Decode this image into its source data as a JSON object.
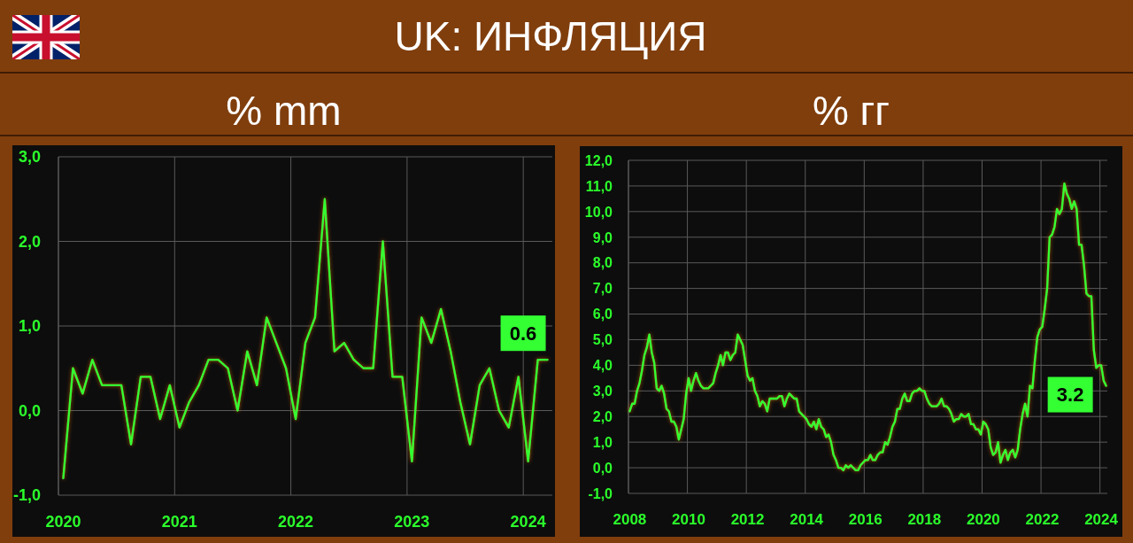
{
  "chart_data": [
    {
      "type": "line",
      "title": "UK: ИНФЛЯЦИЯ",
      "subtitle": "% mm",
      "categories": [
        "2020",
        null,
        null,
        null,
        null,
        null,
        null,
        null,
        null,
        null,
        null,
        null,
        "2021",
        null,
        null,
        null,
        null,
        null,
        null,
        null,
        null,
        null,
        null,
        null,
        "2022",
        null,
        null,
        null,
        null,
        null,
        null,
        null,
        null,
        null,
        null,
        null,
        "2023",
        null,
        null,
        null,
        null,
        null,
        null,
        null,
        null,
        null,
        null,
        null,
        "2024",
        null,
        null
      ],
      "series": [
        {
          "color": "#33ff33",
          "values": [
            -0.8,
            0.5,
            0.2,
            0.6,
            0.3,
            0.3,
            0.3,
            -0.4,
            0.4,
            0.4,
            -0.1,
            0.3,
            -0.2,
            0.1,
            0.3,
            0.6,
            0.6,
            0.5,
            0.0,
            0.7,
            0.3,
            1.1,
            0.8,
            0.5,
            -0.1,
            0.8,
            1.1,
            2.5,
            0.7,
            0.8,
            0.6,
            0.5,
            0.5,
            2.0,
            0.4,
            0.4,
            -0.6,
            1.1,
            0.8,
            1.2,
            0.7,
            0.1,
            -0.4,
            0.3,
            0.5,
            0.0,
            -0.2,
            0.4,
            -0.6,
            0.6,
            0.6
          ],
          "value_labels": [
            null,
            null,
            null,
            null,
            null,
            null,
            null,
            null,
            null,
            null,
            null,
            null,
            null,
            null,
            null,
            null,
            null,
            null,
            null,
            null,
            null,
            null,
            null,
            null,
            null,
            null,
            null,
            null,
            null,
            null,
            null,
            null,
            null,
            null,
            null,
            null,
            null,
            null,
            null,
            null,
            null,
            null,
            null,
            null,
            null,
            null,
            null,
            null,
            null,
            null,
            "0.6"
          ]
        }
      ],
      "ylim": [
        -1,
        3
      ],
      "yticks": [
        {
          "value": -1,
          "label": "-1,0"
        },
        {
          "value": 0,
          "label": "0,0"
        },
        {
          "value": 1,
          "label": "1,0"
        },
        {
          "value": 2,
          "label": "2,0"
        },
        {
          "value": 3,
          "label": "3,0"
        }
      ],
      "grid": true
    },
    {
      "type": "line",
      "subtitle": "% гг",
      "categories": [
        "2008",
        null,
        null,
        null,
        null,
        null,
        null,
        null,
        null,
        null,
        null,
        null,
        null,
        null,
        null,
        null,
        null,
        null,
        null,
        null,
        null,
        null,
        null,
        null,
        "2010",
        null,
        null,
        null,
        null,
        null,
        null,
        null,
        null,
        null,
        null,
        null,
        null,
        null,
        null,
        null,
        null,
        null,
        null,
        null,
        null,
        null,
        null,
        null,
        "2012",
        null,
        null,
        null,
        null,
        null,
        null,
        null,
        null,
        null,
        null,
        null,
        null,
        null,
        null,
        null,
        null,
        null,
        null,
        null,
        null,
        null,
        null,
        null,
        "2014",
        null,
        null,
        null,
        null,
        null,
        null,
        null,
        null,
        null,
        null,
        null,
        null,
        null,
        null,
        null,
        null,
        null,
        null,
        null,
        null,
        null,
        null,
        null,
        "2016",
        null,
        null,
        null,
        null,
        null,
        null,
        null,
        null,
        null,
        null,
        null,
        null,
        null,
        null,
        null,
        null,
        null,
        null,
        null,
        null,
        null,
        null,
        null,
        "2018",
        null,
        null,
        null,
        null,
        null,
        null,
        null,
        null,
        null,
        null,
        null,
        null,
        null,
        null,
        null,
        null,
        null,
        null,
        null,
        null,
        null,
        null,
        null,
        "2020",
        null,
        null,
        null,
        null,
        null,
        null,
        null,
        null,
        null,
        null,
        null,
        null,
        null,
        null,
        null,
        null,
        null,
        null,
        null,
        null,
        null,
        null,
        null,
        "2022",
        null,
        null,
        null,
        null,
        null,
        null,
        null,
        null,
        null,
        null,
        null,
        null,
        null,
        null,
        null,
        null,
        null,
        null,
        null,
        null,
        null,
        null,
        null,
        "2024",
        null,
        null
      ],
      "series": [
        {
          "color": "#33ff33",
          "values": [
            2.2,
            2.5,
            2.5,
            3.0,
            3.3,
            3.8,
            4.4,
            4.7,
            5.2,
            4.5,
            4.1,
            3.1,
            3.0,
            3.2,
            2.9,
            2.3,
            2.2,
            1.8,
            1.8,
            1.6,
            1.1,
            1.5,
            1.9,
            2.9,
            3.5,
            3.0,
            3.4,
            3.7,
            3.4,
            3.2,
            3.1,
            3.1,
            3.1,
            3.2,
            3.3,
            3.7,
            4.0,
            4.4,
            4.0,
            4.5,
            4.5,
            4.2,
            4.4,
            4.5,
            5.2,
            5.0,
            4.8,
            4.2,
            3.6,
            3.4,
            3.5,
            3.0,
            2.8,
            2.4,
            2.6,
            2.5,
            2.2,
            2.7,
            2.7,
            2.7,
            2.7,
            2.8,
            2.8,
            2.4,
            2.7,
            2.9,
            2.8,
            2.7,
            2.7,
            2.2,
            2.1,
            2.0,
            1.9,
            1.7,
            1.6,
            1.8,
            1.5,
            1.9,
            1.6,
            1.5,
            1.2,
            1.3,
            1.0,
            0.5,
            0.3,
            0.0,
            0.0,
            -0.1,
            0.1,
            0.0,
            0.1,
            0.0,
            -0.1,
            -0.1,
            0.1,
            0.2,
            0.3,
            0.3,
            0.5,
            0.3,
            0.3,
            0.5,
            0.6,
            0.6,
            1.0,
            0.9,
            1.2,
            1.6,
            1.8,
            2.3,
            2.3,
            2.7,
            2.9,
            2.6,
            2.6,
            2.9,
            3.0,
            3.0,
            3.1,
            3.0,
            3.0,
            2.7,
            2.5,
            2.4,
            2.4,
            2.4,
            2.5,
            2.7,
            2.4,
            2.4,
            2.3,
            2.1,
            1.8,
            1.9,
            1.9,
            2.1,
            2.0,
            2.0,
            2.1,
            1.7,
            1.7,
            1.5,
            1.5,
            1.3,
            1.8,
            1.7,
            1.5,
            0.8,
            0.5,
            0.6,
            1.0,
            0.2,
            0.5,
            0.7,
            0.3,
            0.6,
            0.7,
            0.4,
            0.7,
            1.5,
            2.1,
            2.5,
            2.0,
            3.2,
            3.1,
            4.2,
            5.1,
            5.4,
            5.5,
            6.2,
            7.0,
            9.0,
            9.1,
            9.4,
            10.1,
            9.9,
            10.1,
            11.1,
            10.7,
            10.5,
            10.1,
            10.4,
            10.1,
            8.7,
            8.7,
            7.9,
            6.8,
            6.7,
            6.7,
            4.6,
            3.9,
            4.0,
            4.0,
            3.4,
            3.2
          ],
          "value_labels": [
            null,
            null,
            null,
            null,
            null,
            null,
            null,
            null,
            null,
            null,
            null,
            null,
            null,
            null,
            null,
            null,
            null,
            null,
            null,
            null,
            null,
            null,
            null,
            null,
            null,
            null,
            null,
            null,
            null,
            null,
            null,
            null,
            null,
            null,
            null,
            null,
            null,
            null,
            null,
            null,
            null,
            null,
            null,
            null,
            null,
            null,
            null,
            null,
            null,
            null,
            null,
            null,
            null,
            null,
            null,
            null,
            null,
            null,
            null,
            null,
            null,
            null,
            null,
            null,
            null,
            null,
            null,
            null,
            null,
            null,
            null,
            null,
            null,
            null,
            null,
            null,
            null,
            null,
            null,
            null,
            null,
            null,
            null,
            null,
            null,
            null,
            null,
            null,
            null,
            null,
            null,
            null,
            null,
            null,
            null,
            null,
            null,
            null,
            null,
            null,
            null,
            null,
            null,
            null,
            null,
            null,
            null,
            null,
            null,
            null,
            null,
            null,
            null,
            null,
            null,
            null,
            null,
            null,
            null,
            null,
            null,
            null,
            null,
            null,
            null,
            null,
            null,
            null,
            null,
            null,
            null,
            null,
            null,
            null,
            null,
            null,
            null,
            null,
            null,
            null,
            null,
            null,
            null,
            null,
            null,
            null,
            null,
            null,
            null,
            null,
            null,
            null,
            null,
            null,
            null,
            null,
            null,
            null,
            null,
            null,
            null,
            null,
            null,
            null,
            null,
            null,
            null,
            null,
            null,
            null,
            null,
            null,
            null,
            null,
            null,
            null,
            null,
            null,
            null,
            null,
            null,
            null,
            null,
            null,
            null,
            null,
            null,
            null,
            null,
            null,
            null,
            null,
            null,
            null,
            "3.2"
          ]
        }
      ],
      "ylim": [
        -1,
        12
      ],
      "yticks": [
        {
          "value": -1,
          "label": "-1,0"
        },
        {
          "value": 0,
          "label": "0,0"
        },
        {
          "value": 1,
          "label": "1,0"
        },
        {
          "value": 2,
          "label": "2,0"
        },
        {
          "value": 3,
          "label": "3,0"
        },
        {
          "value": 4,
          "label": "4,0"
        },
        {
          "value": 5,
          "label": "5,0"
        },
        {
          "value": 6,
          "label": "6,0"
        },
        {
          "value": 7,
          "label": "7,0"
        },
        {
          "value": 8,
          "label": "8,0"
        },
        {
          "value": 9,
          "label": "9,0"
        },
        {
          "value": 10,
          "label": "10,0"
        },
        {
          "value": 11,
          "label": "11,0"
        },
        {
          "value": 12,
          "label": "12,0"
        }
      ],
      "grid": true
    }
  ]
}
